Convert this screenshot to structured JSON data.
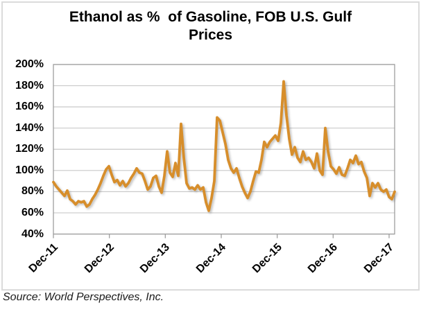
{
  "chart": {
    "title": "Ethanol as %  of Gasoline, FOB U.S. Gulf Prices",
    "source_note": "Source: World Perspectives, Inc."
  },
  "chart_data": {
    "type": "line",
    "title": "Ethanol as % of Gasoline, FOB U.S. Gulf Prices",
    "xlabel": "",
    "ylabel": "",
    "ylim": [
      40,
      200
    ],
    "grid": "horizontal",
    "legend": "none",
    "y_tick_values": [
      200,
      180,
      160,
      140,
      120,
      100,
      80,
      60,
      40
    ],
    "y_tick_labels": [
      "200%",
      "180%",
      "160%",
      "140%",
      "120%",
      "100%",
      "80%",
      "60%",
      "40%"
    ],
    "x_tick_labels": [
      "Dec-11",
      "Dec-12",
      "Dec-13",
      "Dec-14",
      "Dec-15",
      "Dec-16",
      "Dec-17"
    ],
    "x_range_note": "evenly spaced samples (~2.5 weeks apart) from Dec-11 to just past Dec-17",
    "series": [
      {
        "name": "Ethanol as % of Gasoline",
        "unit": "percent",
        "color": "#D78E2B",
        "values": [
          89,
          85,
          82,
          79,
          76,
          81,
          73,
          71,
          68,
          71,
          70,
          71,
          66,
          68,
          73,
          77,
          82,
          88,
          95,
          101,
          104,
          96,
          89,
          91,
          86,
          90,
          85,
          88,
          93,
          97,
          102,
          98,
          97,
          90,
          82,
          85,
          93,
          95,
          85,
          79,
          95,
          118,
          98,
          94,
          107,
          95,
          144,
          112,
          88,
          83,
          84,
          82,
          86,
          82,
          84,
          70,
          62,
          74,
          90,
          150,
          147,
          136,
          125,
          110,
          102,
          98,
          102,
          93,
          85,
          79,
          74,
          80,
          90,
          99,
          98,
          110,
          127,
          122,
          127,
          130,
          133,
          128,
          145,
          184,
          152,
          130,
          115,
          122,
          112,
          108,
          118,
          110,
          112,
          108,
          102,
          116,
          100,
          96,
          140,
          118,
          104,
          101,
          97,
          103,
          96,
          95,
          102,
          110,
          107,
          114,
          106,
          108,
          99,
          93,
          76,
          88,
          84,
          88,
          82,
          80,
          82,
          75,
          73,
          80
        ]
      }
    ],
    "notable_points": {
      "start_value_pct": 89,
      "min_value_pct": 62,
      "max_value_pct": 184,
      "end_value_pct": 80
    },
    "colors": {
      "line": "#D78E2B",
      "gridline": "#c9c9c9",
      "plot_border": "#9e9e9e",
      "outer_border": "#dbdbdb"
    }
  }
}
